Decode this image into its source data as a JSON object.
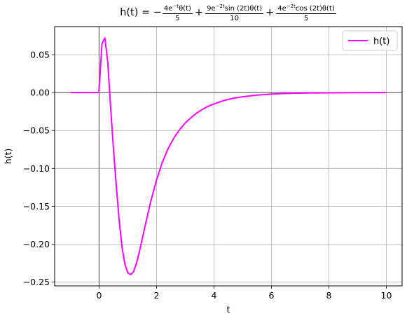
{
  "chart_data": {
    "type": "line",
    "title": "h(t) = -4e^{-t}θ(t)/5 + 9e^{-2t}sin(2t)θ(t)/10 + 4e^{-2t}cos(2t)θ(t)/5",
    "title_parts": {
      "prefix": "h(t) = −",
      "term1_num_a": "4e",
      "term1_num_sup": "−t",
      "term1_num_b": "θ(t)",
      "term1_den": "5",
      "op1": "+",
      "term2_num_a": "9e",
      "term2_num_sup": "−2t",
      "term2_num_b": "sin (2t)θ(t)",
      "term2_den": "10",
      "op2": "+",
      "term3_num_a": "4e",
      "term3_num_sup": "−2t",
      "term3_num_b": "cos (2t)θ(t)",
      "term3_den": "5"
    },
    "xlabel": "t",
    "ylabel": "h(t)",
    "xlim": [
      -1.55,
      10.55
    ],
    "ylim": [
      -0.255,
      0.087
    ],
    "xticks": [
      0,
      2,
      4,
      6,
      8,
      10
    ],
    "xtick_labels": [
      "0",
      "2",
      "4",
      "6",
      "8",
      "10"
    ],
    "yticks": [
      -0.25,
      -0.2,
      -0.15,
      -0.1,
      -0.05,
      0.0,
      0.05
    ],
    "ytick_labels": [
      "−0.25",
      "−0.20",
      "−0.15",
      "−0.10",
      "−0.05",
      "0.00",
      "0.05"
    ],
    "grid": true,
    "legend_position": "top-right",
    "series": [
      {
        "name": "h(t)",
        "color": "#ff00ff",
        "x": [
          -1,
          -0.5,
          -0.01,
          0.1,
          0.2,
          0.3,
          0.4,
          0.5,
          0.6,
          0.7,
          0.8,
          0.9,
          1.0,
          1.1,
          1.2,
          1.3,
          1.4,
          1.5,
          1.6,
          1.8,
          2.0,
          2.2,
          2.4,
          2.6,
          2.8,
          3.0,
          3.2,
          3.4,
          3.6,
          3.8,
          4.0,
          4.3,
          4.6,
          5.0,
          5.5,
          6.0,
          6.5,
          7.0,
          8.0,
          9.0,
          10.0
        ],
        "y": [
          0,
          0,
          0,
          0.065,
          0.072,
          0.04,
          -0.02,
          -0.075,
          -0.125,
          -0.17,
          -0.205,
          -0.227,
          -0.238,
          -0.24,
          -0.236,
          -0.225,
          -0.21,
          -0.193,
          -0.176,
          -0.143,
          -0.115,
          -0.092,
          -0.074,
          -0.06,
          -0.049,
          -0.04,
          -0.033,
          -0.027,
          -0.022,
          -0.018,
          -0.015,
          -0.011,
          -0.008,
          -0.0055,
          -0.0034,
          -0.002,
          -0.0012,
          -0.0007,
          -0.0003,
          -0.0001,
          0
        ]
      }
    ]
  }
}
